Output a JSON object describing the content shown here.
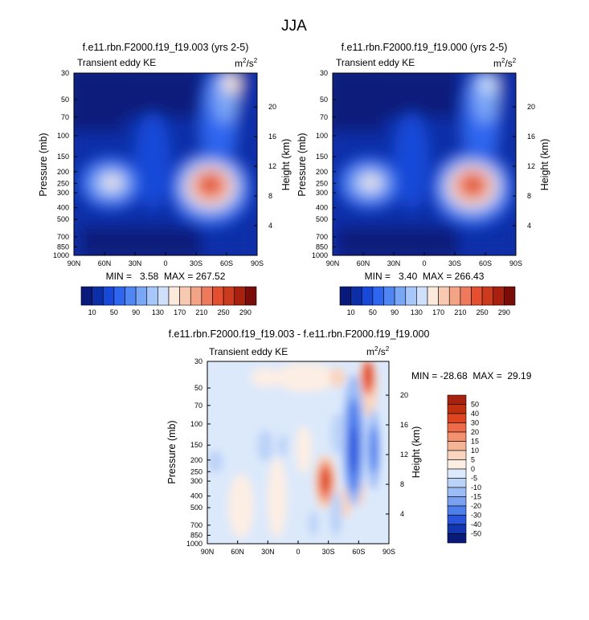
{
  "page": {
    "title": "JJA"
  },
  "chart_data": [
    {
      "type": "heatmap",
      "title": "f.e11.rbn.F2000.f19_f19.003 (yrs 2-5)",
      "left_label": "Transient eddy KE",
      "units_base": "m",
      "units_exp1": "2",
      "units_sep": "/s",
      "units_exp2": "2",
      "ylabel": "Pressure (mb)",
      "y2label": "Height (km)",
      "x_ticks": [
        "90N",
        "60N",
        "30N",
        "0",
        "30S",
        "60S",
        "90S"
      ],
      "y_ticks": [
        "30",
        "50",
        "70",
        "100",
        "150",
        "200",
        "250",
        "300",
        "400",
        "500",
        "700",
        "850",
        "1000"
      ],
      "y2_ticks": [
        "20",
        "16",
        "12",
        "8",
        "4"
      ],
      "stats": "MIN =   3.58  MAX = 267.52",
      "min": 3.58,
      "max": 267.52,
      "levels": [
        "10",
        "50",
        "90",
        "130",
        "170",
        "210",
        "250",
        "290"
      ],
      "colors": [
        "#0a1a7a",
        "#0c2fa8",
        "#1848d8",
        "#2f66f0",
        "#4f86f4",
        "#7aa6f6",
        "#a7c6f9",
        "#cfe0fb",
        "#fbe9dc",
        "#f7c9b0",
        "#f3a487",
        "#ee7a5e",
        "#e4502f",
        "#cc3a1e",
        "#a8210f",
        "#7a0d08"
      ]
    },
    {
      "type": "heatmap",
      "title": "f.e11.rbn.F2000.f19_f19.000 (yrs 2-5)",
      "left_label": "Transient eddy KE",
      "units_base": "m",
      "units_exp1": "2",
      "units_sep": "/s",
      "units_exp2": "2",
      "ylabel": "Pressure (mb)",
      "y2label": "Height (km)",
      "x_ticks": [
        "90N",
        "60N",
        "30N",
        "0",
        "30S",
        "60S",
        "90S"
      ],
      "y_ticks": [
        "30",
        "50",
        "70",
        "100",
        "150",
        "200",
        "250",
        "300",
        "400",
        "500",
        "700",
        "850",
        "1000"
      ],
      "y2_ticks": [
        "20",
        "16",
        "12",
        "8",
        "4"
      ],
      "stats": "MIN =   3.40  MAX = 266.43",
      "min": 3.4,
      "max": 266.43,
      "levels": [
        "10",
        "50",
        "90",
        "130",
        "170",
        "210",
        "250",
        "290"
      ],
      "colors": [
        "#0a1a7a",
        "#0c2fa8",
        "#1848d8",
        "#2f66f0",
        "#4f86f4",
        "#7aa6f6",
        "#a7c6f9",
        "#cfe0fb",
        "#fbe9dc",
        "#f7c9b0",
        "#f3a487",
        "#ee7a5e",
        "#e4502f",
        "#cc3a1e",
        "#a8210f",
        "#7a0d08"
      ]
    },
    {
      "type": "heatmap",
      "title": "f.e11.rbn.F2000.f19_f19.003 - f.e11.rbn.F2000.f19_f19.000",
      "left_label": "Transient eddy KE",
      "units_base": "m",
      "units_exp1": "2",
      "units_sep": "/s",
      "units_exp2": "2",
      "ylabel": "Pressure (mb)",
      "y2label": "Height (km)",
      "x_ticks": [
        "90N",
        "60N",
        "30N",
        "0",
        "30S",
        "60S",
        "90S"
      ],
      "y_ticks": [
        "30",
        "50",
        "70",
        "100",
        "150",
        "200",
        "250",
        "300",
        "400",
        "500",
        "700",
        "850",
        "1000"
      ],
      "y2_ticks": [
        "20",
        "16",
        "12",
        "8",
        "4"
      ],
      "stats": "MIN = -28.68  MAX =  29.19",
      "min": -28.68,
      "max": 29.19,
      "levels": [
        "50",
        "40",
        "30",
        "20",
        "15",
        "10",
        "5",
        "0",
        "-5",
        "-10",
        "-15",
        "-20",
        "-30",
        "-40",
        "-50"
      ],
      "colors": [
        "#a8210f",
        "#c0300e",
        "#dd4420",
        "#ee6a48",
        "#f3906e",
        "#f6b497",
        "#f9d4bf",
        "#fdeee4",
        "#dce9fb",
        "#bcd3f8",
        "#9bbcf5",
        "#7aa1f1",
        "#4e7ded",
        "#2a55db",
        "#1235b0",
        "#0a1a7a"
      ]
    }
  ]
}
